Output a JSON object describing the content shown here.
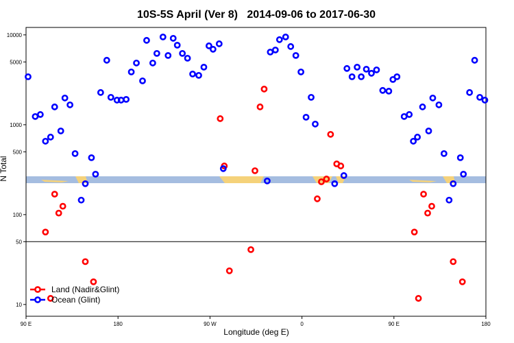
{
  "chart_data": {
    "type": "scatter",
    "title": "10S-5S April (Ver 8)   2014-09-06 to 2017-06-30",
    "x_label": "Longitude (deg E)",
    "y_label": "N Total",
    "xlim": [
      90,
      540
    ],
    "xticks": [
      {
        "value": 90,
        "label": "90 E"
      },
      {
        "value": 180,
        "label": "180"
      },
      {
        "value": 270,
        "label": "90 W"
      },
      {
        "value": 360,
        "label": "0"
      },
      {
        "value": 450,
        "label": "90 E"
      },
      {
        "value": 540,
        "label": "180"
      }
    ],
    "ylim": [
      7.4,
      12100
    ],
    "y_log": true,
    "yticks": [
      10,
      50,
      100,
      500,
      1000,
      5000,
      10000
    ],
    "hline": 50,
    "legend": "bottom-left",
    "series": [
      {
        "name": "Land (Nadir&Glint)",
        "color": "#ff0000",
        "x": [
          109,
          114,
          118,
          122,
          126,
          148,
          156,
          280,
          284,
          289,
          310,
          314,
          319,
          323,
          375,
          379,
          384,
          388,
          394,
          398,
          470,
          474,
          479,
          483,
          487,
          508,
          517
        ],
        "values": [
          64,
          11.7,
          169,
          104,
          124,
          30,
          17.9,
          1170,
          348,
          23.7,
          40.8,
          308,
          1580,
          2495,
          150,
          232,
          249,
          782,
          367,
          348,
          64,
          11.7,
          169,
          104,
          124,
          30,
          17.9
        ]
      },
      {
        "name": "Ocean (Glint)",
        "color": "#0000ff",
        "x": [
          92,
          99,
          104,
          109,
          114,
          118,
          124,
          128,
          133,
          138,
          144,
          148,
          154,
          158,
          163,
          169,
          173,
          179,
          183,
          188,
          193,
          198,
          204,
          208,
          214,
          218,
          224,
          229,
          234,
          238,
          243,
          248,
          253,
          259,
          264,
          269,
          273,
          279,
          283,
          326,
          329,
          334,
          338,
          344,
          349,
          354,
          359,
          364,
          369,
          373,
          392,
          401,
          404,
          409,
          414,
          418,
          423,
          428,
          433,
          439,
          445,
          449,
          453,
          460,
          465,
          469,
          473,
          478,
          484,
          488,
          494,
          499,
          504,
          508,
          515,
          518,
          524,
          529,
          534,
          539
        ],
        "values": [
          3420,
          1235,
          1300,
          656,
          729,
          1580,
          853,
          1985,
          1665,
          478,
          145,
          221,
          430,
          282,
          2285,
          5220,
          2020,
          1880,
          1880,
          1915,
          3870,
          4865,
          3080,
          8690,
          4865,
          6220,
          9480,
          5900,
          9160,
          7680,
          6220,
          5500,
          3670,
          3545,
          4375,
          7550,
          6920,
          7960,
          325,
          237,
          6440,
          6790,
          8850,
          9480,
          7420,
          5900,
          3870,
          1213,
          2020,
          1018,
          221,
          272,
          4230,
          3420,
          4375,
          3420,
          4150,
          3740,
          4080,
          2410,
          2365,
          3190,
          3420,
          1235,
          1300,
          656,
          729,
          1580,
          853,
          1985,
          1665,
          478,
          145,
          221,
          430,
          282,
          2285,
          5220,
          2020,
          1880
        ]
      }
    ]
  }
}
